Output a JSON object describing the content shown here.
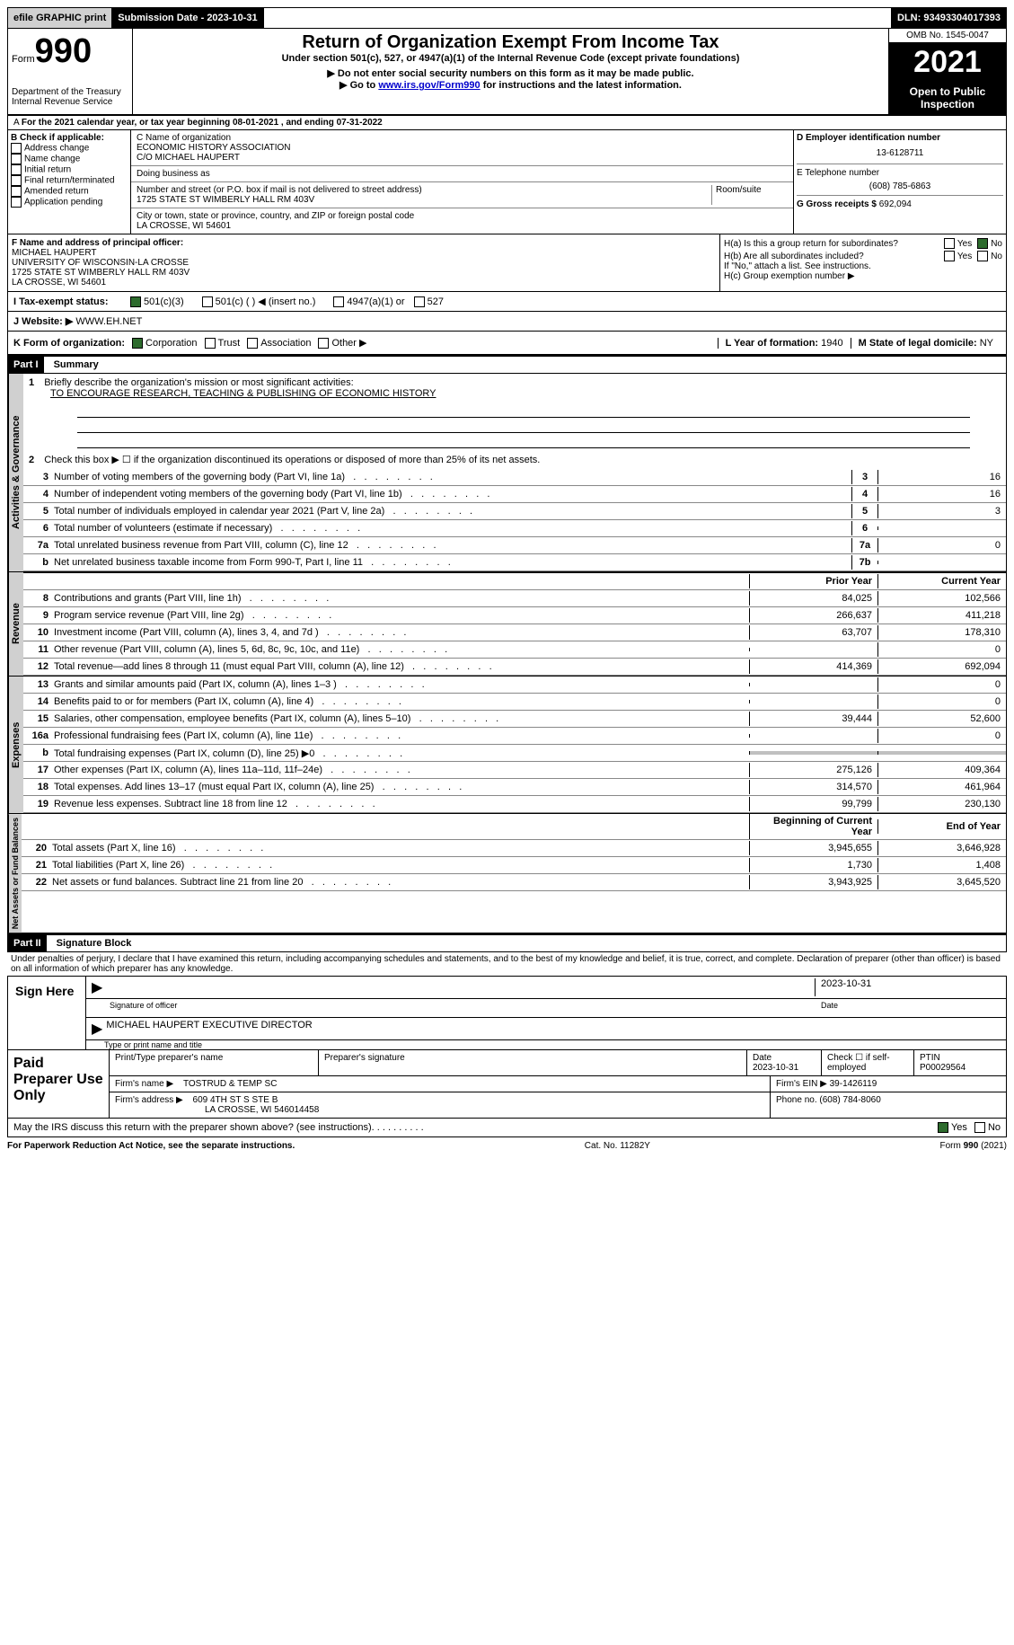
{
  "topbar": {
    "efile": "efile GRAPHIC print",
    "submission_label": "Submission Date - 2023-10-31",
    "dln_label": "DLN: 93493304017393"
  },
  "header": {
    "form_word": "Form",
    "form_number": "990",
    "title": "Return of Organization Exempt From Income Tax",
    "subtitle": "Under section 501(c), 527, or 4947(a)(1) of the Internal Revenue Code (except private foundations)",
    "note1": "▶ Do not enter social security numbers on this form as it may be made public.",
    "note2_prefix": "▶ Go to ",
    "note2_link": "www.irs.gov/Form990",
    "note2_suffix": " for instructions and the latest information.",
    "dept": "Department of the Treasury Internal Revenue Service",
    "omb": "OMB No. 1545-0047",
    "year": "2021",
    "open": "Open to Public Inspection"
  },
  "line_a": "For the 2021 calendar year, or tax year beginning 08-01-2021   , and ending 07-31-2022",
  "box_b": {
    "label": "B Check if applicable:",
    "items": [
      "Address change",
      "Name change",
      "Initial return",
      "Final return/terminated",
      "Amended return",
      "Application pending"
    ]
  },
  "box_c": {
    "name_label": "C Name of organization",
    "name": "ECONOMIC HISTORY ASSOCIATION",
    "co": "C/O MICHAEL HAUPERT",
    "dba_label": "Doing business as",
    "street_label": "Number and street (or P.O. box if mail is not delivered to street address)",
    "room_label": "Room/suite",
    "street": "1725 STATE ST WIMBERLY HALL RM 403V",
    "city_label": "City or town, state or province, country, and ZIP or foreign postal code",
    "city": "LA CROSSE, WI  54601"
  },
  "box_d": {
    "label": "D Employer identification number",
    "ein": "13-6128711",
    "phone_label": "E Telephone number",
    "phone": "(608) 785-6863",
    "gross_label": "G Gross receipts $",
    "gross": "692,094"
  },
  "box_f": {
    "label": "F  Name and address of principal officer:",
    "lines": [
      "MICHAEL HAUPERT",
      "UNIVERSITY OF WISCONSIN-LA CROSSE",
      "1725 STATE ST WIMBERLY HALL RM 403V",
      "LA CROSSE, WI  54601"
    ]
  },
  "box_h": {
    "a": "H(a)  Is this a group return for subordinates?",
    "b": "H(b)  Are all subordinates included?",
    "b_note": "If \"No,\" attach a list. See instructions.",
    "c": "H(c)  Group exemption number ▶",
    "yes": "Yes",
    "no": "No"
  },
  "line_i": {
    "label": "I   Tax-exempt status:",
    "opts": [
      "501(c)(3)",
      "501(c) (  ) ◀ (insert no.)",
      "4947(a)(1) or",
      "527"
    ]
  },
  "line_j": {
    "label": "J   Website: ▶",
    "value": " WWW.EH.NET"
  },
  "line_k": {
    "label": "K Form of organization:",
    "opts": [
      "Corporation",
      "Trust",
      "Association",
      "Other ▶"
    ]
  },
  "line_l": {
    "label": "L Year of formation: ",
    "value": "1940"
  },
  "line_m": {
    "label": "M State of legal domicile: ",
    "value": "NY"
  },
  "part1": {
    "header": "Part I",
    "title": "Summary",
    "tab_governance": "Activities & Governance",
    "tab_revenue": "Revenue",
    "tab_expenses": "Expenses",
    "tab_net": "Net Assets or Fund Balances",
    "line1_label": "Briefly describe the organization's mission or most significant activities:",
    "line1_value": "TO ENCOURAGE RESEARCH, TEACHING & PUBLISHING OF ECONOMIC HISTORY",
    "line2": "Check this box ▶ ☐  if the organization discontinued its operations or disposed of more than 25% of its net assets.",
    "rows_gov": [
      {
        "n": "3",
        "d": "Number of voting members of the governing body (Part VI, line 1a)",
        "b": "3",
        "v": "16"
      },
      {
        "n": "4",
        "d": "Number of independent voting members of the governing body (Part VI, line 1b)",
        "b": "4",
        "v": "16"
      },
      {
        "n": "5",
        "d": "Total number of individuals employed in calendar year 2021 (Part V, line 2a)",
        "b": "5",
        "v": "3"
      },
      {
        "n": "6",
        "d": "Total number of volunteers (estimate if necessary)",
        "b": "6",
        "v": ""
      },
      {
        "n": "7a",
        "d": "Total unrelated business revenue from Part VIII, column (C), line 12",
        "b": "7a",
        "v": "0"
      },
      {
        "n": "b",
        "d": "Net unrelated business taxable income from Form 990-T, Part I, line 11",
        "b": "7b",
        "v": ""
      }
    ],
    "col_prior": "Prior Year",
    "col_current": "Current Year",
    "rows_rev": [
      {
        "n": "8",
        "d": "Contributions and grants (Part VIII, line 1h)",
        "p": "84,025",
        "c": "102,566"
      },
      {
        "n": "9",
        "d": "Program service revenue (Part VIII, line 2g)",
        "p": "266,637",
        "c": "411,218"
      },
      {
        "n": "10",
        "d": "Investment income (Part VIII, column (A), lines 3, 4, and 7d )",
        "p": "63,707",
        "c": "178,310"
      },
      {
        "n": "11",
        "d": "Other revenue (Part VIII, column (A), lines 5, 6d, 8c, 9c, 10c, and 11e)",
        "p": "",
        "c": "0"
      },
      {
        "n": "12",
        "d": "Total revenue—add lines 8 through 11 (must equal Part VIII, column (A), line 12)",
        "p": "414,369",
        "c": "692,094"
      }
    ],
    "rows_exp": [
      {
        "n": "13",
        "d": "Grants and similar amounts paid (Part IX, column (A), lines 1–3 )",
        "p": "",
        "c": "0"
      },
      {
        "n": "14",
        "d": "Benefits paid to or for members (Part IX, column (A), line 4)",
        "p": "",
        "c": "0"
      },
      {
        "n": "15",
        "d": "Salaries, other compensation, employee benefits (Part IX, column (A), lines 5–10)",
        "p": "39,444",
        "c": "52,600"
      },
      {
        "n": "16a",
        "d": "Professional fundraising fees (Part IX, column (A), line 11e)",
        "p": "",
        "c": "0"
      },
      {
        "n": "b",
        "d": "Total fundraising expenses (Part IX, column (D), line 25) ▶0",
        "p": "gray",
        "c": "gray"
      },
      {
        "n": "17",
        "d": "Other expenses (Part IX, column (A), lines 11a–11d, 11f–24e)",
        "p": "275,126",
        "c": "409,364"
      },
      {
        "n": "18",
        "d": "Total expenses. Add lines 13–17 (must equal Part IX, column (A), line 25)",
        "p": "314,570",
        "c": "461,964"
      },
      {
        "n": "19",
        "d": "Revenue less expenses. Subtract line 18 from line 12",
        "p": "99,799",
        "c": "230,130"
      }
    ],
    "col_beg": "Beginning of Current Year",
    "col_end": "End of Year",
    "rows_net": [
      {
        "n": "20",
        "d": "Total assets (Part X, line 16)",
        "p": "3,945,655",
        "c": "3,646,928"
      },
      {
        "n": "21",
        "d": "Total liabilities (Part X, line 26)",
        "p": "1,730",
        "c": "1,408"
      },
      {
        "n": "22",
        "d": "Net assets or fund balances. Subtract line 21 from line 20",
        "p": "3,943,925",
        "c": "3,645,520"
      }
    ]
  },
  "part2": {
    "header": "Part II",
    "title": "Signature Block",
    "penalty": "Under penalties of perjury, I declare that I have examined this return, including accompanying schedules and statements, and to the best of my knowledge and belief, it is true, correct, and complete. Declaration of preparer (other than officer) is based on all information of which preparer has any knowledge.",
    "sign_here": "Sign Here",
    "sig_officer": "Signature of officer",
    "sig_date": "2023-10-31",
    "date_label": "Date",
    "officer_name": "MICHAEL HAUPERT  EXECUTIVE DIRECTOR",
    "type_name": "Type or print name and title",
    "paid": "Paid Preparer Use Only",
    "print_name": "Print/Type preparer's name",
    "prep_sig": "Preparer's signature",
    "prep_date_label": "Date",
    "prep_date": "2023-10-31",
    "check_self": "Check ☐ if self-employed",
    "ptin_label": "PTIN",
    "ptin": "P00029564",
    "firm_name_label": "Firm's name    ▶",
    "firm_name": "TOSTRUD & TEMP SC",
    "firm_ein_label": "Firm's EIN ▶",
    "firm_ein": "39-1426119",
    "firm_addr_label": "Firm's address ▶",
    "firm_addr1": "609 4TH ST S STE B",
    "firm_addr2": "LA CROSSE, WI  546014458",
    "firm_phone_label": "Phone no.",
    "firm_phone": "(608) 784-8060",
    "discuss": "May the IRS discuss this return with the preparer shown above? (see instructions)",
    "yes": "Yes",
    "no": "No"
  },
  "footer": {
    "left": "For Paperwork Reduction Act Notice, see the separate instructions.",
    "mid": "Cat. No. 11282Y",
    "right": "Form 990 (2021)"
  }
}
